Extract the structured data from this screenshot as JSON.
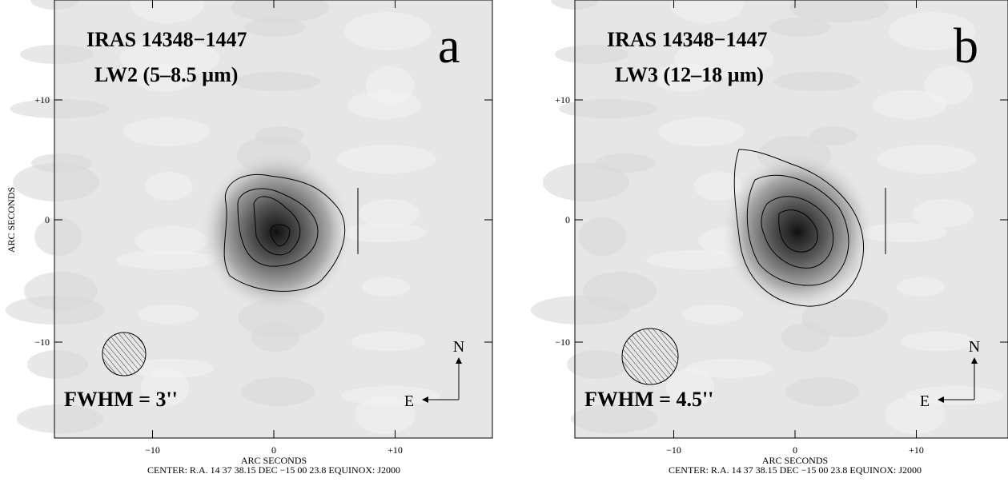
{
  "panels": [
    {
      "title": "IRAS 14348−1447",
      "band": "LW2 (5–8.5 µm)",
      "letter": "a",
      "fwhm": "FWHM = 3''",
      "x_ticks": [
        "−10",
        "0",
        "+10"
      ],
      "y_ticks": [
        "+10",
        "0",
        "−10"
      ],
      "x_axis_label": "ARC SECONDS",
      "y_axis_label": "ARC SECONDS",
      "center": "CENTER: R.A. 14 37 38.15 DEC −15 00 23.8  EQUINOX: J2000",
      "north": "N",
      "east": "E"
    },
    {
      "title": "IRAS 14348−1447",
      "band": "LW3 (12–18 µm)",
      "letter": "b",
      "fwhm": "FWHM = 4.5''",
      "x_ticks": [
        "−10",
        "0",
        "+10"
      ],
      "y_ticks": [
        "+10",
        "0",
        "−10"
      ],
      "x_axis_label": "ARC SECONDS",
      "center": "CENTER: R.A. 14 37 38.15 DEC −15 00 23.8  EQUINOX: J2000",
      "north": "N",
      "east": "E"
    }
  ]
}
